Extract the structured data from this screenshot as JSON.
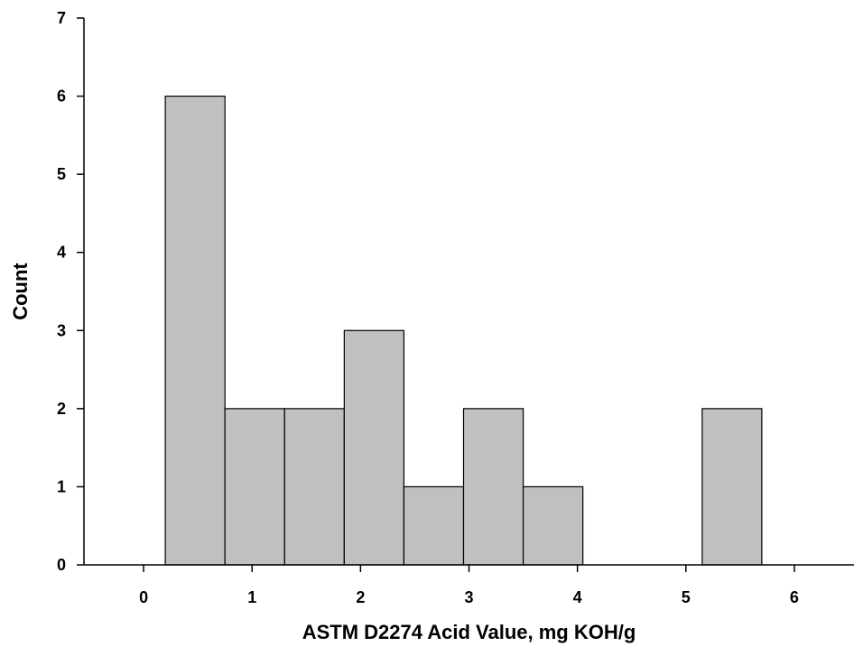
{
  "chart_data": {
    "type": "bar",
    "title": "",
    "xlabel": "ASTM D2274 Acid Value, mg KOH/g",
    "ylabel": "Count",
    "xlim": [
      -0.55,
      6.55
    ],
    "ylim": [
      0,
      7
    ],
    "xticks": [
      0,
      1,
      2,
      3,
      4,
      5,
      6
    ],
    "yticks": [
      0,
      1,
      2,
      3,
      4,
      5,
      6,
      7
    ],
    "bin_edges": [
      0.2,
      0.75,
      1.3,
      1.85,
      2.4,
      2.95,
      3.5,
      4.05,
      4.6,
      5.15,
      5.7
    ],
    "values": [
      6,
      2,
      2,
      3,
      1,
      2,
      1,
      0,
      0,
      2
    ],
    "bar_color": "#c0c0c0",
    "grid": false,
    "legend": false
  }
}
